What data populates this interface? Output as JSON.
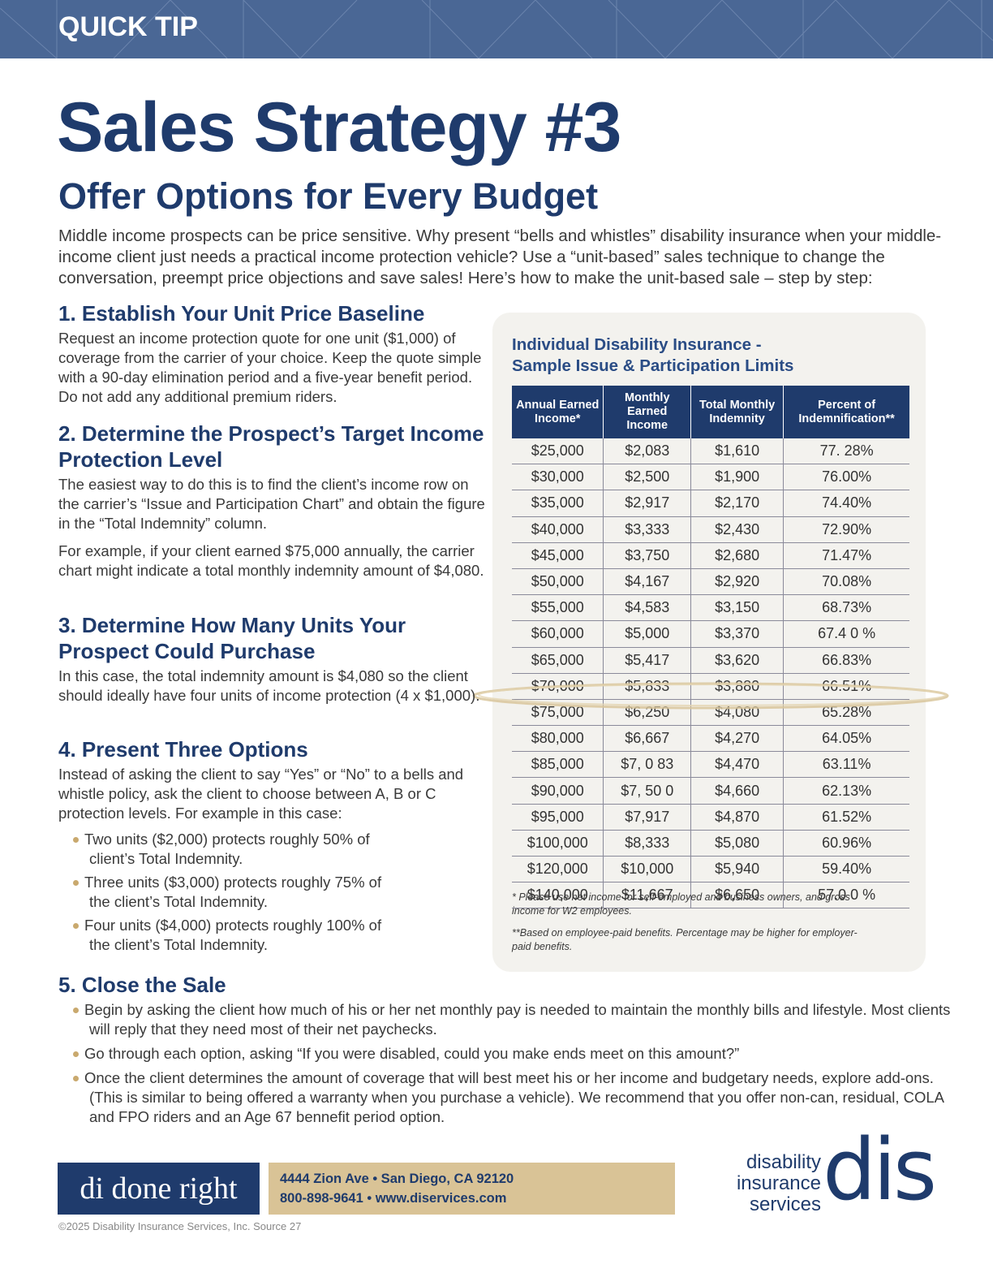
{
  "header": {
    "label": "QUICK TIP"
  },
  "title": "Sales Strategy #3",
  "subtitle": "Offer Options for Every Budget",
  "intro": "Middle income prospects can be price sensitive. Why present “bells and whistles” disability insurance when your middle-income client just needs a practical income protection vehicle? Use a “unit-based” sales technique to change the conversation, preempt price objections and save sales! Here’s how to make the unit-based sale – step by step:",
  "steps": [
    {
      "heading": "1. Establish Your Unit Price Baseline",
      "paragraphs": [
        "Request an income protection quote for one unit ($1,000) of coverage from the carrier of your choice. Keep the quote simple with a 90-day elimination period and a five-year benefit period. Do not add any additional premium riders."
      ]
    },
    {
      "heading": "2. Determine the Prospect’s Target Income Protection Level",
      "paragraphs": [
        "The easiest way to do this is to find the client’s income row on the carrier’s “Issue and Participation Chart” and obtain the figure in the “Total Indemnity” column.",
        "For example, if your client earned $75,000 annually, the carrier chart might indicate a total monthly indemnity amount of $4,080."
      ]
    },
    {
      "heading": "3. Determine How Many Units Your Prospect Could Purchase",
      "paragraphs": [
        "In this case, the total indemnity amount is $4,080 so the client should ideally have four units of income protection (4 x $1,000)."
      ]
    },
    {
      "heading": "4. Present Three Options",
      "paragraphs": [
        "Instead of asking the client to say “Yes” or “No” to a bells and whistle policy, ask the client to choose between A, B or C protection levels. For example in this case:"
      ],
      "bullets": [
        "Two units ($2,000) protects roughly 50% of client’s Total Indemnity.",
        "Three units ($3,000) protects roughly 75% of the client’s Total Indemnity.",
        "Four units ($4,000) protects roughly 100% of the client’s Total Indemnity."
      ]
    },
    {
      "heading": "5. Close the Sale",
      "bullets": [
        "Begin by asking the client how much of his or her net monthly pay is needed to maintain the monthly bills and lifestyle. Most clients will reply that they need most of their net paychecks.",
        "Go through each option, asking “If you were disabled, could you make ends meet on this amount?”",
        "Once the client determines the amount of coverage that will best meet his or her income and budgetary needs, explore add-ons. (This is similar to being offered a warranty when you purchase a vehicle). We recommend that you offer non-can, residual, COLA and FPO riders and an Age 67 bennefit  period option."
      ]
    }
  ],
  "table": {
    "title": [
      "Individual Disability Insurance -",
      "Sample Issue & Participation Limits"
    ],
    "columns": [
      "Annual Earned Income*",
      "Monthly Earned Income",
      "Total Monthly Indemnity",
      "Percent of Indemnification**"
    ],
    "rows": [
      [
        "$25,000",
        "$2,083",
        "$1,610",
        "77. 28%"
      ],
      [
        "$30,000",
        "$2,500",
        "$1,900",
        "76.00%"
      ],
      [
        "$35,000",
        "$2,917",
        "$2,170",
        "74.40%"
      ],
      [
        "$40,000",
        "$3,333",
        "$2,430",
        "72.90%"
      ],
      [
        "$45,000",
        "$3,750",
        "$2,680",
        "71.47%"
      ],
      [
        "$50,000",
        "$4,167",
        "$2,920",
        "70.08%"
      ],
      [
        "$55,000",
        "$4,583",
        "$3,150",
        "68.73%"
      ],
      [
        "$60,000",
        "$5,000",
        "$3,370",
        "67.4 0 %"
      ],
      [
        "$65,000",
        "$5,417",
        "$3,620",
        "66.83%"
      ],
      [
        "$70,000",
        "$5,833",
        "$3,880",
        "66.51%"
      ],
      [
        "$75,000",
        "$6,250",
        "$4,080",
        "65.28%"
      ],
      [
        "$80,000",
        "$6,667",
        "$4,270",
        "64.05%"
      ],
      [
        "$85,000",
        "$7, 0 83",
        "$4,470",
        "63.11%"
      ],
      [
        "$90,000",
        "$7, 50 0",
        "$4,660",
        "62.13%"
      ],
      [
        "$95,000",
        "$7,917",
        "$4,870",
        "61.52%"
      ],
      [
        "$100,000",
        "$8,333",
        "$5,080",
        "60.96%"
      ],
      [
        "$120,000",
        "$10,000",
        "$5,940",
        "59.40%"
      ],
      [
        "$140,000",
        "$11,667",
        "$6,650",
        "57.0 0 %"
      ]
    ],
    "footnotes": [
      "*  Please use net income for self-employed and business owners, and gross income for W2 employees.",
      "**Based on employee-paid benefits. Percentage may be higher for employer-paid benefits."
    ]
  },
  "footer": {
    "brand": "di done right",
    "address": "4444 Zion Ave  • San Diego, CA 92120",
    "contact": "800-898-9641 • www.diservices.com",
    "copyright": "©2025 Disability Insurance Services, Inc.  Source 27",
    "logo_text": [
      "disability",
      "insurance",
      "services"
    ],
    "logo_mark": "dis"
  }
}
